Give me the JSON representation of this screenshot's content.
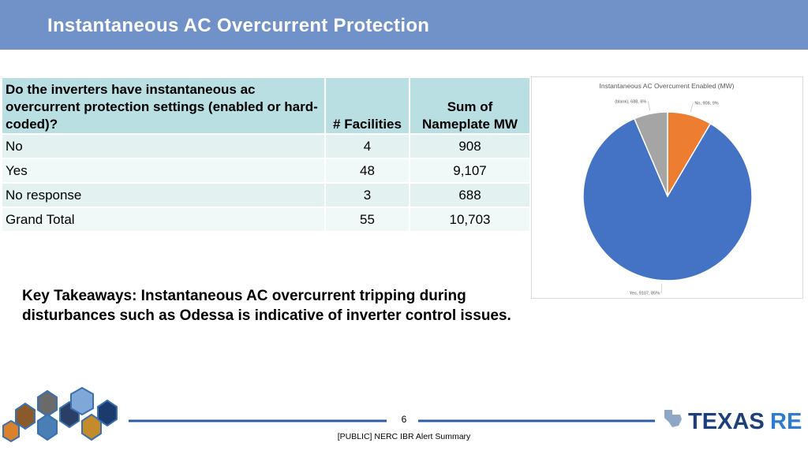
{
  "header": {
    "title": "Instantaneous AC Overcurrent Protection"
  },
  "table": {
    "columns": [
      "Do the inverters have instantaneous ac overcurrent protection settings (enabled or hard-coded)?",
      "# Facilities",
      "Sum of Nameplate MW"
    ],
    "rows": [
      [
        "No",
        "4",
        "908"
      ],
      [
        "Yes",
        "48",
        "9,107"
      ],
      [
        "No response",
        "3",
        "688"
      ],
      [
        "Grand Total",
        "55",
        "10,703"
      ]
    ]
  },
  "chart_data": {
    "type": "pie",
    "title": "Instantaneous AC Overcurrent Enabled (MW)",
    "categories": [
      "No",
      "Yes",
      "(blank)"
    ],
    "values": [
      908,
      9107,
      688
    ],
    "value_labels": [
      "No, 908, 9%",
      "Yes, 9107, 85%",
      "(blank), 688, 6%"
    ],
    "colors": [
      "#ed7d31",
      "#4472c4",
      "#a5a5a5"
    ]
  },
  "takeaway": "Key Takeaways: Instantaneous AC overcurrent tripping during disturbances such as Odessa is indicative of inverter control issues.",
  "footer": {
    "page": "6",
    "note": "[PUBLIC] NERC IBR Alert Summary",
    "logo": [
      "TEXAS",
      "RE"
    ]
  }
}
